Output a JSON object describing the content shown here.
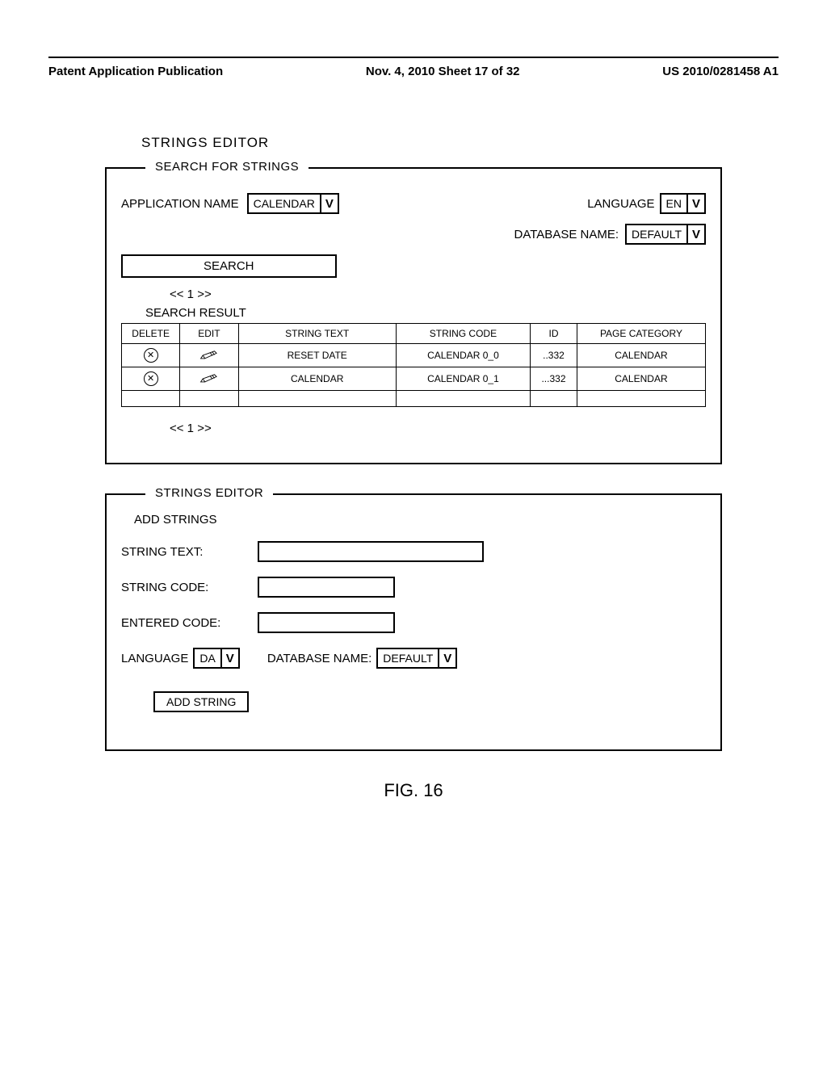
{
  "header": {
    "left": "Patent Application Publication",
    "center": "Nov. 4, 2010  Sheet 17 of 32",
    "right": "US 2010/0281458 A1"
  },
  "title": "STRINGS EDITOR",
  "search_box": {
    "legend": "SEARCH FOR STRINGS",
    "app_name_label": "APPLICATION NAME",
    "app_name_value": "CALENDAR",
    "language_label": "LANGUAGE",
    "language_value": "EN",
    "db_label": "DATABASE NAME:",
    "db_value": "DEFAULT",
    "search_btn": "SEARCH",
    "pager": "<< 1 >>",
    "result_label": "SEARCH RESULT",
    "table": {
      "headers": [
        "DELETE",
        "EDIT",
        "STRING TEXT",
        "STRING CODE",
        "ID",
        "PAGE CATEGORY"
      ],
      "rows": [
        {
          "text": "RESET DATE",
          "code": "CALENDAR 0_0",
          "id": "..332",
          "cat": "CALENDAR"
        },
        {
          "text": "CALENDAR",
          "code": "CALENDAR 0_1",
          "id": "...332",
          "cat": "CALENDAR"
        }
      ]
    }
  },
  "editor_box": {
    "legend": "STRINGS EDITOR",
    "add_heading": "ADD STRINGS",
    "string_text_label": "STRING TEXT:",
    "string_code_label": "STRING CODE:",
    "entered_code_label": "ENTERED CODE:",
    "language_label": "LANGUAGE",
    "language_value": "DA",
    "db_label": "DATABASE NAME:",
    "db_value": "DEFAULT",
    "add_btn": "ADD STRING"
  },
  "figure_label": "FIG. 16"
}
